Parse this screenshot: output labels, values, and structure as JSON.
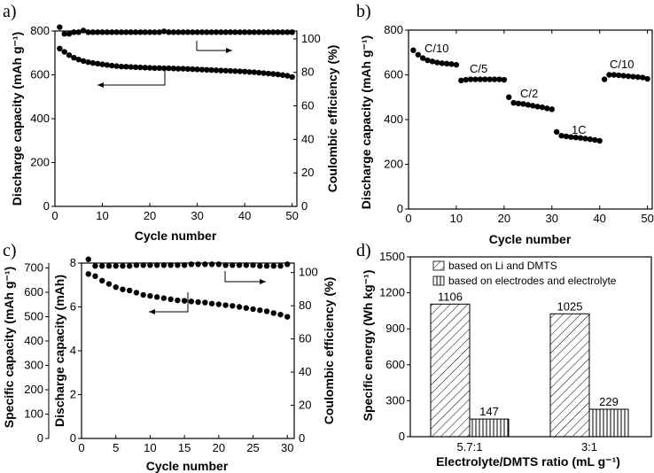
{
  "chart_data": [
    {
      "type": "scatter",
      "panel": "a)",
      "xlabel": "Cycle number",
      "ylabel": "Discharge capacity (mAh g⁻¹)",
      "ylabel_right": "Coulombic efficiency (%)",
      "xlim": [
        0,
        51
      ],
      "ylim": [
        0,
        800
      ],
      "ylim_right": [
        0,
        110
      ],
      "xticks": [
        0,
        10,
        20,
        30,
        40,
        50
      ],
      "yticks": [
        0,
        200,
        400,
        600,
        800
      ],
      "yticks_right": [
        0,
        20,
        40,
        60,
        80,
        100
      ],
      "series": [
        {
          "name": "Discharge capacity",
          "axis": "left",
          "x": [
            1,
            2,
            3,
            4,
            5,
            6,
            7,
            8,
            9,
            10,
            11,
            12,
            13,
            14,
            15,
            16,
            17,
            18,
            19,
            20,
            21,
            22,
            23,
            24,
            25,
            26,
            27,
            28,
            29,
            30,
            31,
            32,
            33,
            34,
            35,
            36,
            37,
            38,
            39,
            40,
            41,
            42,
            43,
            44,
            45,
            46,
            47,
            48,
            49,
            50
          ],
          "values": [
            720,
            705,
            690,
            678,
            670,
            663,
            658,
            654,
            651,
            648,
            645,
            642,
            640,
            638,
            637,
            636,
            635,
            634,
            633,
            632,
            631,
            631,
            630,
            630,
            629,
            628,
            628,
            627,
            626,
            625,
            624,
            623,
            622,
            621,
            620,
            619,
            618,
            617,
            616,
            615,
            613,
            612,
            610,
            608,
            606,
            604,
            602,
            599,
            596,
            590
          ]
        },
        {
          "name": "Coulombic efficiency",
          "axis": "right",
          "x": [
            1,
            2,
            3,
            4,
            5,
            6,
            7,
            8,
            9,
            10,
            11,
            12,
            13,
            14,
            15,
            16,
            17,
            18,
            19,
            20,
            21,
            22,
            23,
            24,
            25,
            26,
            27,
            28,
            29,
            30,
            31,
            32,
            33,
            34,
            35,
            36,
            37,
            38,
            39,
            40,
            41,
            42,
            43,
            44,
            45,
            46,
            47,
            48,
            49,
            50
          ],
          "values": [
            107,
            103,
            103,
            104,
            104,
            105,
            104,
            104,
            104,
            104,
            104,
            104,
            104,
            104,
            104,
            104,
            104,
            104,
            104,
            104,
            104,
            104,
            104.5,
            104,
            104,
            104,
            104,
            104,
            104,
            104,
            104,
            104,
            104,
            104,
            104,
            104,
            104,
            104,
            104,
            104,
            104,
            104,
            104,
            104,
            104,
            104,
            104,
            104,
            104,
            104
          ]
        }
      ]
    },
    {
      "type": "scatter",
      "panel": "b)",
      "xlabel": "Cycle number",
      "ylabel": "Discharge capacity (mAh g⁻¹)",
      "xlim": [
        0,
        51
      ],
      "ylim": [
        0,
        800
      ],
      "xticks": [
        0,
        10,
        20,
        30,
        40,
        50
      ],
      "yticks": [
        0,
        200,
        400,
        600,
        800
      ],
      "annotations": [
        "C/10",
        "C/5",
        "C/2",
        "1C",
        "C/10"
      ],
      "series": [
        {
          "name": "Discharge capacity",
          "x": [
            1,
            2,
            3,
            4,
            5,
            6,
            7,
            8,
            9,
            10,
            11,
            12,
            13,
            14,
            15,
            16,
            17,
            18,
            19,
            20,
            21,
            22,
            23,
            24,
            25,
            26,
            27,
            28,
            29,
            30,
            31,
            32,
            33,
            34,
            35,
            36,
            37,
            38,
            39,
            40,
            41,
            42,
            43,
            44,
            45,
            46,
            47,
            48,
            49,
            50
          ],
          "values": [
            710,
            690,
            675,
            665,
            660,
            655,
            652,
            650,
            648,
            645,
            575,
            578,
            580,
            580,
            580,
            580,
            580,
            580,
            580,
            578,
            500,
            475,
            472,
            470,
            466,
            462,
            458,
            455,
            450,
            446,
            345,
            328,
            325,
            322,
            320,
            318,
            315,
            312,
            309,
            305,
            580,
            600,
            600,
            598,
            596,
            594,
            592,
            590,
            588,
            582
          ]
        }
      ]
    },
    {
      "type": "scatter",
      "panel": "c)",
      "xlabel": "Cycle number",
      "ylabel": "Specific capacity (mAh g⁻¹)",
      "ylabel_inner": "Discharge capacity (mAh)",
      "ylabel_right": "Coulombic efficiency (%)",
      "xlim": [
        0,
        31
      ],
      "ylim_inner": [
        0,
        8
      ],
      "ylim_outer": [
        0,
        720
      ],
      "ylim_right": [
        0,
        110
      ],
      "xticks": [
        0,
        5,
        10,
        15,
        20,
        25,
        30
      ],
      "yticks_outer": [
        0,
        100,
        200,
        300,
        400,
        500,
        600,
        700
      ],
      "yticks_inner": [
        0,
        2,
        4,
        6,
        8
      ],
      "yticks_right": [
        0,
        20,
        40,
        60,
        80,
        100
      ],
      "series": [
        {
          "name": "Discharge capacity",
          "axis": "inner",
          "x": [
            1,
            2,
            3,
            4,
            5,
            6,
            7,
            8,
            9,
            10,
            11,
            12,
            13,
            14,
            15,
            16,
            17,
            18,
            19,
            20,
            21,
            22,
            23,
            24,
            25,
            26,
            27,
            28,
            29,
            30
          ],
          "values": [
            7.5,
            7.4,
            7.2,
            7.05,
            6.9,
            6.8,
            6.75,
            6.65,
            6.55,
            6.5,
            6.45,
            6.4,
            6.35,
            6.3,
            6.28,
            6.25,
            6.22,
            6.2,
            6.15,
            6.12,
            6.08,
            6.05,
            6.0,
            5.95,
            5.9,
            5.85,
            5.8,
            5.72,
            5.65,
            5.55
          ]
        },
        {
          "name": "Coulombic efficiency",
          "axis": "right",
          "x": [
            1,
            2,
            3,
            4,
            5,
            6,
            7,
            8,
            9,
            10,
            11,
            12,
            13,
            14,
            15,
            16,
            17,
            18,
            19,
            20,
            21,
            22,
            23,
            24,
            25,
            26,
            27,
            28,
            29,
            30
          ],
          "values": [
            108,
            104,
            104,
            104,
            104,
            104,
            104,
            104.5,
            104.5,
            104.5,
            104.5,
            104.5,
            104.5,
            104.5,
            104.5,
            105,
            105,
            105,
            105,
            105,
            104.5,
            104.5,
            104.5,
            104.5,
            104.5,
            104,
            104,
            104,
            104,
            105
          ]
        }
      ]
    },
    {
      "type": "bar",
      "panel": "d)",
      "xlabel": "Electrolyte/DMTS ratio (mL g⁻¹)",
      "ylabel": "Specific energy (Wh kg⁻¹)",
      "ylim": [
        0,
        1500
      ],
      "yticks": [
        0,
        300,
        600,
        900,
        1200,
        1500
      ],
      "categories": [
        "5.7:1",
        "3:1"
      ],
      "series": [
        {
          "name": "based on Li and DMTS",
          "values": [
            1106,
            1025
          ]
        },
        {
          "name": "based on electrodes and electrolyte",
          "values": [
            147,
            229
          ]
        }
      ]
    }
  ]
}
